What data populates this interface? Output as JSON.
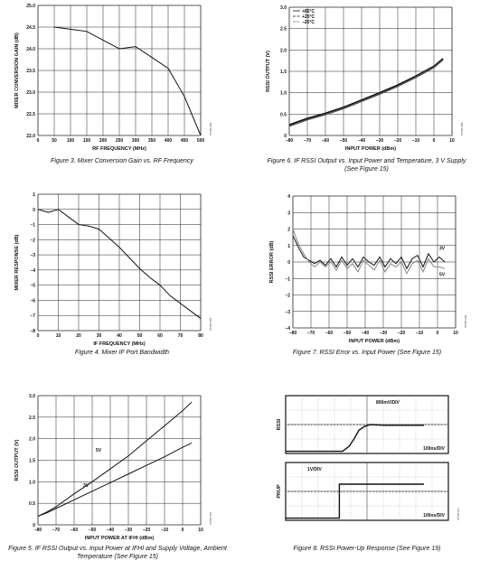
{
  "charts": [
    {
      "id": "fig3",
      "type": "line",
      "title": "",
      "xlabel": "RF FREQUENCY (MHz)",
      "ylabel": "MIXER CONVERSION GAIN (dB)",
      "xlim": [
        0,
        500
      ],
      "ylim": [
        22.0,
        25.0
      ],
      "xticks": [
        "0",
        "50",
        "100",
        "150",
        "200",
        "250",
        "300",
        "350",
        "400",
        "450",
        "500"
      ],
      "yticks": [
        "22.0",
        "22.5",
        "23.0",
        "23.5",
        "24.0",
        "24.5",
        "25.0"
      ],
      "series": [
        {
          "x": [
            50,
            100,
            150,
            200,
            250,
            300,
            350,
            400,
            450,
            500
          ],
          "y": [
            24.5,
            24.45,
            24.4,
            24.2,
            24.0,
            24.05,
            23.8,
            23.55,
            22.9,
            22.0
          ]
        }
      ],
      "caption": "Figure 3. Mixer Conversion Gain vs. RF Frequency",
      "code": "07655-005"
    },
    {
      "id": "fig4",
      "type": "line",
      "title": "",
      "xlabel": "IF FREQUENCY (MHz)",
      "ylabel": "MIXER RESPONSE (dB)",
      "xlim": [
        0,
        80
      ],
      "ylim": [
        -8,
        1
      ],
      "xticks": [
        "0",
        "10",
        "20",
        "30",
        "40",
        "50",
        "60",
        "70",
        "80"
      ],
      "yticks": [
        "–8",
        "–7",
        "–6",
        "–5",
        "–4",
        "–3",
        "–2",
        "–1",
        "0",
        "1"
      ],
      "series": [
        {
          "x": [
            0,
            5,
            10,
            15,
            20,
            25,
            30,
            35,
            40,
            45,
            50,
            55,
            60,
            65,
            70,
            75,
            80
          ],
          "y": [
            0,
            -0.2,
            0,
            -0.5,
            -1.0,
            -1.1,
            -1.3,
            -1.9,
            -2.5,
            -3.2,
            -3.9,
            -4.5,
            -5.0,
            -5.7,
            -6.2,
            -6.7,
            -7.2
          ]
        }
      ],
      "caption": "Figure 4. Mixer IF Port Bandwidth",
      "code": "07655-006"
    },
    {
      "id": "fig5",
      "type": "line",
      "title": "",
      "xlabel": "INPUT POWER AT IFHI (dBm)",
      "ylabel": "RSSI OUTPUT (V)",
      "xlim": [
        -80,
        10
      ],
      "ylim": [
        0,
        3.0
      ],
      "xticks": [
        "–80",
        "–70",
        "–60",
        "–50",
        "–40",
        "–30",
        "–20",
        "–10",
        "0",
        "10"
      ],
      "yticks": [
        "0",
        "0.5",
        "1.0",
        "1.5",
        "2.0",
        "2.5",
        "3.0"
      ],
      "series": [
        {
          "name": "5V",
          "x": [
            -80,
            -75,
            -70,
            -60,
            -50,
            -40,
            -30,
            -20,
            -10,
            0,
            5
          ],
          "y": [
            0.2,
            0.3,
            0.42,
            0.72,
            1.0,
            1.3,
            1.6,
            1.95,
            2.3,
            2.65,
            2.85
          ]
        },
        {
          "name": "3V",
          "x": [
            -80,
            -75,
            -70,
            -60,
            -50,
            -40,
            -30,
            -20,
            -10,
            0,
            5
          ],
          "y": [
            0.2,
            0.28,
            0.38,
            0.58,
            0.78,
            0.98,
            1.18,
            1.38,
            1.58,
            1.8,
            1.9
          ]
        }
      ],
      "labels": [
        "5V",
        "3V"
      ],
      "caption": "Figure 5. IF RSSI Output vs. Input Power at IFHI and Supply Voltage, Ambient Temperature (See Figure 15)",
      "code": "07655-007"
    },
    {
      "id": "fig6",
      "type": "line",
      "title": "",
      "xlabel": "INPUT POWER (dBm)",
      "ylabel": "RSSI OUTPUT (V)",
      "xlim": [
        -80,
        10
      ],
      "ylim": [
        0,
        3.0
      ],
      "xticks": [
        "–80",
        "–70",
        "–60",
        "–50",
        "–40",
        "–30",
        "–20",
        "–10",
        "0",
        "10"
      ],
      "yticks": [
        "0",
        "0.5",
        "1.0",
        "1.5",
        "2.0",
        "2.5",
        "3.0"
      ],
      "legend": [
        "+85°C",
        "+25°C",
        "–25°C"
      ],
      "series": [
        {
          "name": "+85°C",
          "x": [
            -80,
            -70,
            -60,
            -50,
            -40,
            -30,
            -20,
            -10,
            0,
            5
          ],
          "y": [
            0.25,
            0.4,
            0.52,
            0.66,
            0.83,
            1.0,
            1.18,
            1.39,
            1.62,
            1.8
          ]
        },
        {
          "name": "+25°C",
          "x": [
            -80,
            -70,
            -60,
            -50,
            -40,
            -30,
            -20,
            -10,
            0,
            5
          ],
          "y": [
            0.24,
            0.39,
            0.51,
            0.65,
            0.82,
            0.99,
            1.17,
            1.38,
            1.61,
            1.79
          ]
        },
        {
          "name": "–25°C",
          "x": [
            -80,
            -70,
            -60,
            -50,
            -40,
            -30,
            -20,
            -10,
            0,
            5
          ],
          "y": [
            0.22,
            0.37,
            0.49,
            0.63,
            0.8,
            0.97,
            1.15,
            1.36,
            1.59,
            1.77
          ]
        }
      ],
      "caption": "Figure 6. IF RSSI Output vs. Input Power and Temperature, 3 V Supply (See Figure 15)",
      "code": "07655-008"
    },
    {
      "id": "fig7",
      "type": "line",
      "title": "",
      "xlabel": "INPUT POWER (dBm)",
      "ylabel": "RSSI ERROR (dB)",
      "xlim": [
        -80,
        10
      ],
      "ylim": [
        -4,
        4
      ],
      "xticks": [
        "–80",
        "–70",
        "–60",
        "–50",
        "–40",
        "–30",
        "–20",
        "–10",
        "0",
        "10"
      ],
      "yticks": [
        "–4",
        "–3",
        "–2",
        "–1",
        "0",
        "1",
        "2",
        "3",
        "4"
      ],
      "series": [
        {
          "name": "3V",
          "x": [
            -80,
            -77,
            -74,
            -71,
            -68,
            -65,
            -62,
            -59,
            -56,
            -53,
            -50,
            -47,
            -44,
            -41,
            -38,
            -35,
            -32,
            -29,
            -26,
            -23,
            -20,
            -17,
            -14,
            -11,
            -8,
            -5,
            -2,
            1,
            4
          ],
          "y": [
            1.6,
            0.9,
            0.3,
            0.1,
            -0.1,
            0.1,
            -0.2,
            0.2,
            -0.3,
            0.3,
            -0.2,
            0.2,
            -0.3,
            0.3,
            0.0,
            -0.2,
            0.3,
            -0.3,
            0.2,
            -0.1,
            0.3,
            -0.4,
            0.2,
            0.4,
            -0.3,
            0.5,
            0.0,
            0.3,
            0.0
          ]
        },
        {
          "name": "5V",
          "x": [
            -80,
            -77,
            -74,
            -71,
            -68,
            -65,
            -62,
            -59,
            -56,
            -53,
            -50,
            -47,
            -44,
            -41,
            -38,
            -35,
            -32,
            -29,
            -26,
            -23,
            -20,
            -17,
            -14,
            -11,
            -8,
            -5,
            -2,
            1,
            4
          ],
          "y": [
            2.0,
            1.1,
            0.5,
            0.0,
            -0.3,
            0.0,
            -0.3,
            0.0,
            -0.5,
            0.1,
            -0.4,
            -0.1,
            -0.6,
            0.1,
            -0.2,
            -0.5,
            0.1,
            -0.6,
            -0.1,
            -0.3,
            0.0,
            -0.7,
            -0.1,
            0.1,
            -0.6,
            0.2,
            -0.3,
            -0.3,
            -0.4
          ]
        }
      ],
      "labels": [
        "3V",
        "5V"
      ],
      "caption": "Figure 7. RSSI Error vs. Input Power (See Figure 15)",
      "code": "07655-009"
    },
    {
      "id": "fig8",
      "type": "line",
      "title": "",
      "caption": "Figure 8. RSSI Power-Up Response (See Figure 19)",
      "code": "07655-011",
      "top": {
        "ylabel": "RSSI",
        "scale_label": "800mV/DIV",
        "time_label": "100ns/DIV",
        "trace_divs": [
          [
            0,
            0.15
          ],
          [
            1,
            0.15
          ],
          [
            2,
            0.15
          ],
          [
            3,
            0.15
          ],
          [
            3.5,
            0.15
          ],
          [
            3.9,
            0.5
          ],
          [
            4.2,
            1.0
          ],
          [
            4.5,
            1.6
          ],
          [
            4.8,
            1.85
          ],
          [
            5.2,
            2.0
          ],
          [
            6,
            1.95
          ],
          [
            7,
            1.95
          ],
          [
            8,
            1.95
          ],
          [
            8.5,
            1.95
          ]
        ]
      },
      "bottom": {
        "ylabel": "PRUP",
        "scale_label": "1V/DIV",
        "time_label": "100ns/DIV",
        "trace_divs": [
          [
            0,
            0.15
          ],
          [
            1,
            0.15
          ],
          [
            2,
            0.15
          ],
          [
            3,
            0.15
          ],
          [
            3.3,
            0.15
          ],
          [
            3.3,
            2.5
          ],
          [
            4,
            2.5
          ],
          [
            5,
            2.5
          ],
          [
            6,
            2.5
          ],
          [
            7,
            2.5
          ],
          [
            8,
            2.5
          ],
          [
            8.5,
            2.5
          ]
        ]
      }
    }
  ]
}
